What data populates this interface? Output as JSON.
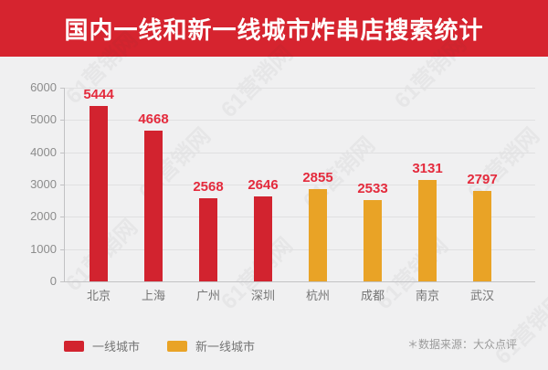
{
  "header": {
    "title": "国内一线和新一线城市炸串店搜索统计",
    "bg_color": "#d6242f",
    "text_color": "#ffffff"
  },
  "watermark": {
    "text": "61营销网"
  },
  "chart_data": {
    "type": "bar",
    "title": "国内一线和新一线城市炸串店搜索统计",
    "categories": [
      "北京",
      "上海",
      "广州",
      "深圳",
      "杭州",
      "成都",
      "南京",
      "武汉"
    ],
    "values": [
      5444,
      4668,
      2568,
      2646,
      2855,
      2533,
      3131,
      2797
    ],
    "bar_series": [
      "一线城市",
      "一线城市",
      "一线城市",
      "一线城市",
      "新一线城市",
      "新一线城市",
      "新一线城市",
      "新一线城市"
    ],
    "series_colors": {
      "一线城市": "#d2232f",
      "新一线城市": "#e9a326"
    },
    "value_label_color": "#e42b3d",
    "xlabel": "",
    "ylabel": "",
    "ylim": [
      0,
      6000
    ],
    "yticks": [
      0,
      1000,
      2000,
      3000,
      4000,
      5000,
      6000
    ],
    "grid": true,
    "legend_position": "bottom-left",
    "legend": [
      {
        "label": "一线城市",
        "color": "#d2232f"
      },
      {
        "label": "新一线城市",
        "color": "#e9a326"
      }
    ],
    "source_note": "＊数据来源：大众点评"
  }
}
